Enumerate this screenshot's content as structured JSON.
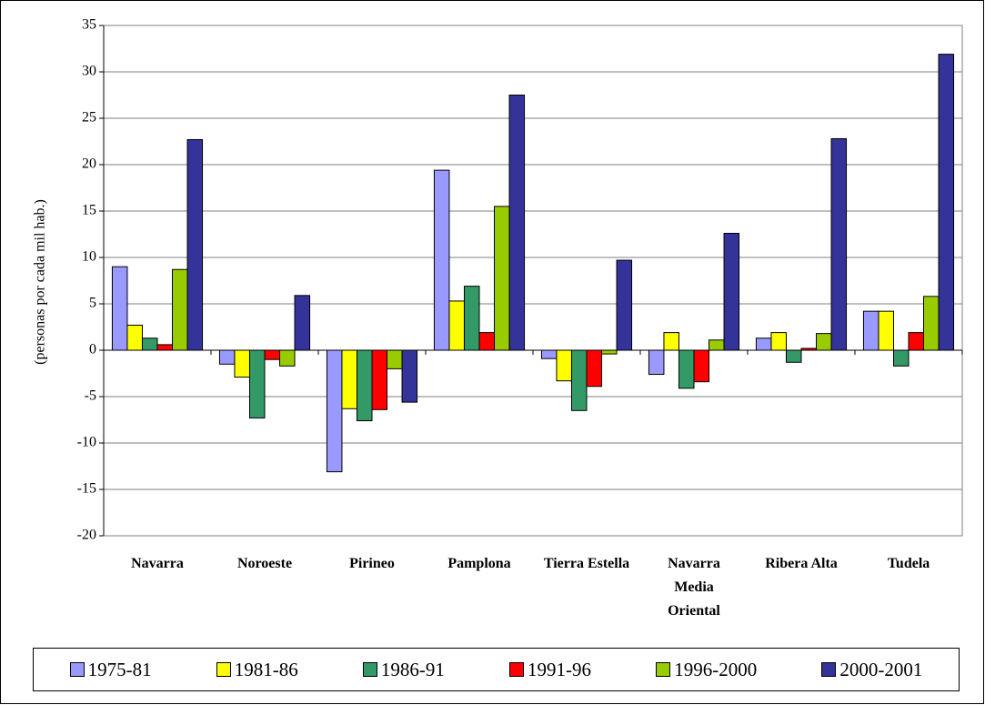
{
  "chart_data": {
    "type": "bar",
    "y_label": "(personas por cada mil hab.)",
    "categories": [
      "Navarra",
      "Noroeste",
      "Pirineo",
      "Pamplona",
      "Tierra Estella",
      "Navarra Media Oriental",
      "Ribera Alta",
      "Tudela"
    ],
    "series": [
      {
        "name": "1975-81",
        "color": "#9999ff",
        "values": [
          9,
          -1.5,
          -13.1,
          19.4,
          -0.9,
          -2.6,
          1.3,
          4.2
        ]
      },
      {
        "name": "1981-86",
        "color": "#ffff00",
        "values": [
          2.7,
          -2.9,
          -6.3,
          5.3,
          -3.3,
          1.9,
          1.9,
          4.2
        ]
      },
      {
        "name": "1986-91",
        "color": "#339966",
        "values": [
          1.3,
          -7.3,
          -7.6,
          6.9,
          -6.5,
          -4.1,
          -1.3,
          -1.7
        ]
      },
      {
        "name": "1991-96",
        "color": "#ff0000",
        "values": [
          0.6,
          -1.0,
          -6.4,
          1.9,
          -3.9,
          -3.4,
          0.2,
          1.9
        ]
      },
      {
        "name": "1996-2000",
        "color": "#99cc00",
        "values": [
          8.7,
          -1.7,
          -2.0,
          15.5,
          -0.4,
          1.1,
          1.8,
          5.8
        ]
      },
      {
        "name": "2000-2001",
        "color": "#333399",
        "values": [
          22.7,
          5.9,
          -5.6,
          27.5,
          9.7,
          12.6,
          22.8,
          31.9
        ]
      }
    ],
    "ylim": [
      -20,
      35
    ],
    "yticks": [
      -20,
      -15,
      -10,
      -5,
      0,
      5,
      10,
      15,
      20,
      25,
      30,
      35
    ],
    "grid": true,
    "legend": "bottom"
  }
}
